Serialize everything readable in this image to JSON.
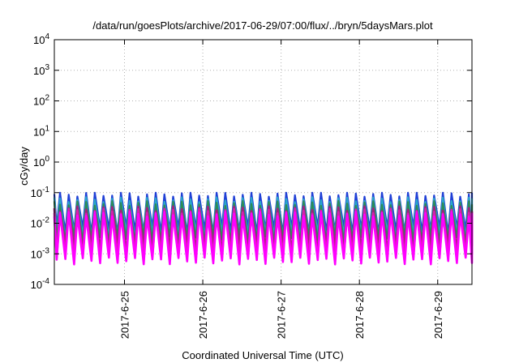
{
  "chart_data": {
    "type": "line",
    "title": "/data/run/goesPlots/archive/2017-06-29/07:00/flux/../bryn/5daysMars.plot",
    "xlabel": "Coordinated Universal Time (UTC)",
    "ylabel": "cGy/day",
    "y_scale": "log",
    "ylim": [
      0.0001,
      10000
    ],
    "y_ticks": [
      {
        "base": "10",
        "exp": "-4"
      },
      {
        "base": "10",
        "exp": "-3"
      },
      {
        "base": "10",
        "exp": "-2"
      },
      {
        "base": "10",
        "exp": "-1"
      },
      {
        "base": "10",
        "exp": "0"
      },
      {
        "base": "10",
        "exp": "1"
      },
      {
        "base": "10",
        "exp": "2"
      },
      {
        "base": "10",
        "exp": "3"
      },
      {
        "base": "10",
        "exp": "4"
      }
    ],
    "xlim": [
      "2017-06-24T02:30",
      "2017-06-29T10:30"
    ],
    "x_ticks": [
      "2017-6-25",
      "2017-6-26",
      "2017-6-27",
      "2017-6-28",
      "2017-6-29"
    ],
    "grid": true,
    "legend": "none",
    "pattern": {
      "description": "diurnal-like sawtooth oscillation, roughly 9 peaks per day",
      "cycles_per_day": 9,
      "series_count": 6
    },
    "series": [
      {
        "color": "#1f3fd6",
        "peak": 0.09,
        "trough": 0.006
      },
      {
        "color": "#2aa7c9",
        "peak": 0.06,
        "trough": 0.004
      },
      {
        "color": "#2e8b57",
        "peak": 0.045,
        "trough": 0.003
      },
      {
        "color": "#a02080",
        "peak": 0.03,
        "trough": 0.0015
      },
      {
        "color": "#d81fb0",
        "peak": 0.025,
        "trough": 0.0009
      },
      {
        "color": "#ff00ff",
        "peak": 0.02,
        "trough": 0.0006
      }
    ]
  }
}
